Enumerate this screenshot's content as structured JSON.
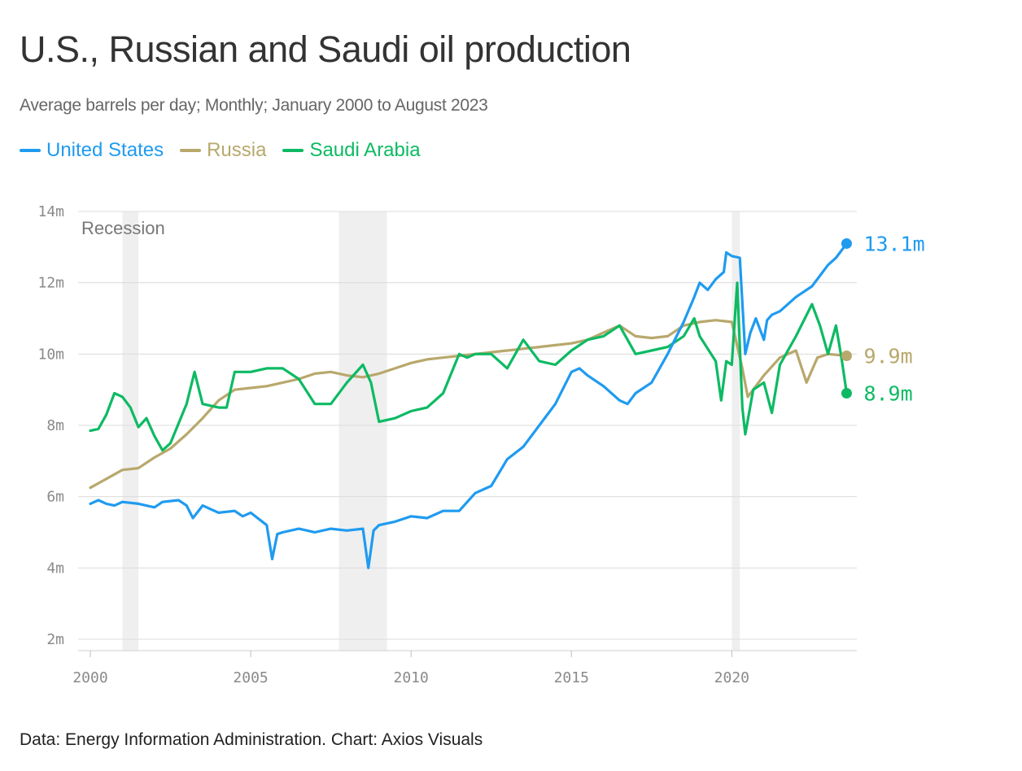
{
  "title": "U.S., Russian and Saudi oil production",
  "subtitle": "Average barrels per day; Monthly; January 2000 to August 2023",
  "footer": "Data: Energy Information Administration. Chart: Axios Visuals",
  "chart_data": {
    "type": "line",
    "xlim": [
      2000,
      2023.67
    ],
    "ylim": [
      2,
      14
    ],
    "y_ticks": [
      2,
      4,
      6,
      8,
      10,
      12,
      14
    ],
    "y_tick_labels": [
      "2m",
      "4m",
      "6m",
      "8m",
      "10m",
      "12m",
      "14m"
    ],
    "x_ticks": [
      2000,
      2005,
      2010,
      2015,
      2020
    ],
    "x_tick_labels": [
      "2000",
      "2005",
      "2010",
      "2015",
      "2020"
    ],
    "grid": true,
    "legend": "top-left",
    "recession_label": "Recession",
    "recessions": [
      [
        2001.0,
        2001.5
      ],
      [
        2007.75,
        2009.25
      ],
      [
        2020.0,
        2020.25
      ]
    ],
    "series": [
      {
        "name": "United States",
        "color": "#1f9bf0",
        "end_label": "13.1m",
        "points": [
          [
            2000.0,
            5.8
          ],
          [
            2000.25,
            5.9
          ],
          [
            2000.5,
            5.8
          ],
          [
            2000.75,
            5.75
          ],
          [
            2001.0,
            5.85
          ],
          [
            2001.5,
            5.8
          ],
          [
            2002.0,
            5.7
          ],
          [
            2002.25,
            5.85
          ],
          [
            2002.75,
            5.9
          ],
          [
            2003.0,
            5.75
          ],
          [
            2003.2,
            5.4
          ],
          [
            2003.5,
            5.75
          ],
          [
            2004.0,
            5.55
          ],
          [
            2004.5,
            5.6
          ],
          [
            2004.75,
            5.45
          ],
          [
            2005.0,
            5.55
          ],
          [
            2005.5,
            5.2
          ],
          [
            2005.67,
            4.25
          ],
          [
            2005.83,
            4.95
          ],
          [
            2006.0,
            5.0
          ],
          [
            2006.5,
            5.1
          ],
          [
            2007.0,
            5.0
          ],
          [
            2007.5,
            5.1
          ],
          [
            2008.0,
            5.05
          ],
          [
            2008.5,
            5.1
          ],
          [
            2008.67,
            4.0
          ],
          [
            2008.83,
            5.05
          ],
          [
            2009.0,
            5.2
          ],
          [
            2009.5,
            5.3
          ],
          [
            2010.0,
            5.45
          ],
          [
            2010.5,
            5.4
          ],
          [
            2011.0,
            5.6
          ],
          [
            2011.5,
            5.6
          ],
          [
            2012.0,
            6.1
          ],
          [
            2012.5,
            6.3
          ],
          [
            2013.0,
            7.05
          ],
          [
            2013.5,
            7.4
          ],
          [
            2014.0,
            8.0
          ],
          [
            2014.5,
            8.6
          ],
          [
            2015.0,
            9.5
          ],
          [
            2015.25,
            9.6
          ],
          [
            2015.5,
            9.4
          ],
          [
            2016.0,
            9.1
          ],
          [
            2016.5,
            8.7
          ],
          [
            2016.75,
            8.6
          ],
          [
            2017.0,
            8.9
          ],
          [
            2017.5,
            9.2
          ],
          [
            2018.0,
            10.0
          ],
          [
            2018.5,
            10.9
          ],
          [
            2018.83,
            11.6
          ],
          [
            2019.0,
            12.0
          ],
          [
            2019.25,
            11.8
          ],
          [
            2019.5,
            12.1
          ],
          [
            2019.75,
            12.3
          ],
          [
            2019.83,
            12.85
          ],
          [
            2020.0,
            12.75
          ],
          [
            2020.25,
            12.7
          ],
          [
            2020.42,
            10.0
          ],
          [
            2020.58,
            10.6
          ],
          [
            2020.75,
            11.0
          ],
          [
            2021.0,
            10.4
          ],
          [
            2021.1,
            10.95
          ],
          [
            2021.25,
            11.1
          ],
          [
            2021.5,
            11.2
          ],
          [
            2022.0,
            11.6
          ],
          [
            2022.5,
            11.9
          ],
          [
            2023.0,
            12.5
          ],
          [
            2023.25,
            12.7
          ],
          [
            2023.58,
            13.1
          ]
        ]
      },
      {
        "name": "Russia",
        "color": "#b8a86c",
        "end_label": "9.9m",
        "points": [
          [
            2000.0,
            6.25
          ],
          [
            2000.5,
            6.5
          ],
          [
            2001.0,
            6.75
          ],
          [
            2001.5,
            6.8
          ],
          [
            2002.0,
            7.1
          ],
          [
            2002.5,
            7.35
          ],
          [
            2003.0,
            7.75
          ],
          [
            2003.5,
            8.2
          ],
          [
            2004.0,
            8.7
          ],
          [
            2004.5,
            9.0
          ],
          [
            2005.0,
            9.05
          ],
          [
            2005.5,
            9.1
          ],
          [
            2006.0,
            9.2
          ],
          [
            2006.5,
            9.3
          ],
          [
            2007.0,
            9.45
          ],
          [
            2007.5,
            9.5
          ],
          [
            2008.0,
            9.4
          ],
          [
            2008.5,
            9.35
          ],
          [
            2009.0,
            9.45
          ],
          [
            2009.5,
            9.6
          ],
          [
            2010.0,
            9.75
          ],
          [
            2010.5,
            9.85
          ],
          [
            2011.0,
            9.9
          ],
          [
            2011.5,
            9.95
          ],
          [
            2012.0,
            10.0
          ],
          [
            2012.5,
            10.05
          ],
          [
            2013.0,
            10.1
          ],
          [
            2013.5,
            10.15
          ],
          [
            2014.0,
            10.2
          ],
          [
            2014.5,
            10.25
          ],
          [
            2015.0,
            10.3
          ],
          [
            2015.5,
            10.4
          ],
          [
            2016.0,
            10.6
          ],
          [
            2016.5,
            10.8
          ],
          [
            2017.0,
            10.5
          ],
          [
            2017.5,
            10.45
          ],
          [
            2018.0,
            10.5
          ],
          [
            2018.5,
            10.8
          ],
          [
            2019.0,
            10.9
          ],
          [
            2019.5,
            10.95
          ],
          [
            2020.0,
            10.9
          ],
          [
            2020.33,
            9.6
          ],
          [
            2020.5,
            8.8
          ],
          [
            2021.0,
            9.4
          ],
          [
            2021.5,
            9.9
          ],
          [
            2022.0,
            10.1
          ],
          [
            2022.33,
            9.2
          ],
          [
            2022.67,
            9.9
          ],
          [
            2023.0,
            10.0
          ],
          [
            2023.58,
            9.95
          ]
        ]
      },
      {
        "name": "Saudi Arabia",
        "color": "#0dba63",
        "end_label": "8.9m",
        "points": [
          [
            2000.0,
            7.85
          ],
          [
            2000.25,
            7.9
          ],
          [
            2000.5,
            8.3
          ],
          [
            2000.75,
            8.9
          ],
          [
            2001.0,
            8.8
          ],
          [
            2001.25,
            8.5
          ],
          [
            2001.5,
            7.95
          ],
          [
            2001.75,
            8.2
          ],
          [
            2002.0,
            7.7
          ],
          [
            2002.25,
            7.3
          ],
          [
            2002.5,
            7.5
          ],
          [
            2003.0,
            8.6
          ],
          [
            2003.25,
            9.5
          ],
          [
            2003.5,
            8.6
          ],
          [
            2004.0,
            8.5
          ],
          [
            2004.25,
            8.5
          ],
          [
            2004.5,
            9.5
          ],
          [
            2005.0,
            9.5
          ],
          [
            2005.5,
            9.6
          ],
          [
            2006.0,
            9.6
          ],
          [
            2006.5,
            9.3
          ],
          [
            2007.0,
            8.6
          ],
          [
            2007.5,
            8.6
          ],
          [
            2008.0,
            9.2
          ],
          [
            2008.5,
            9.7
          ],
          [
            2008.75,
            9.2
          ],
          [
            2009.0,
            8.1
          ],
          [
            2009.5,
            8.2
          ],
          [
            2010.0,
            8.4
          ],
          [
            2010.5,
            8.5
          ],
          [
            2011.0,
            8.9
          ],
          [
            2011.5,
            10.0
          ],
          [
            2011.75,
            9.9
          ],
          [
            2012.0,
            10.0
          ],
          [
            2012.5,
            10.0
          ],
          [
            2013.0,
            9.6
          ],
          [
            2013.5,
            10.4
          ],
          [
            2014.0,
            9.8
          ],
          [
            2014.5,
            9.7
          ],
          [
            2015.0,
            10.1
          ],
          [
            2015.5,
            10.4
          ],
          [
            2016.0,
            10.5
          ],
          [
            2016.5,
            10.8
          ],
          [
            2017.0,
            10.0
          ],
          [
            2017.5,
            10.1
          ],
          [
            2018.0,
            10.2
          ],
          [
            2018.5,
            10.5
          ],
          [
            2018.83,
            11.0
          ],
          [
            2019.0,
            10.5
          ],
          [
            2019.5,
            9.8
          ],
          [
            2019.67,
            8.7
          ],
          [
            2019.83,
            9.8
          ],
          [
            2020.0,
            9.7
          ],
          [
            2020.17,
            12.0
          ],
          [
            2020.33,
            8.5
          ],
          [
            2020.42,
            7.75
          ],
          [
            2020.67,
            9.0
          ],
          [
            2021.0,
            9.2
          ],
          [
            2021.25,
            8.35
          ],
          [
            2021.5,
            9.7
          ],
          [
            2022.0,
            10.5
          ],
          [
            2022.5,
            11.4
          ],
          [
            2022.75,
            10.8
          ],
          [
            2023.0,
            10.0
          ],
          [
            2023.25,
            10.8
          ],
          [
            2023.42,
            9.9
          ],
          [
            2023.58,
            8.9
          ]
        ]
      }
    ]
  }
}
